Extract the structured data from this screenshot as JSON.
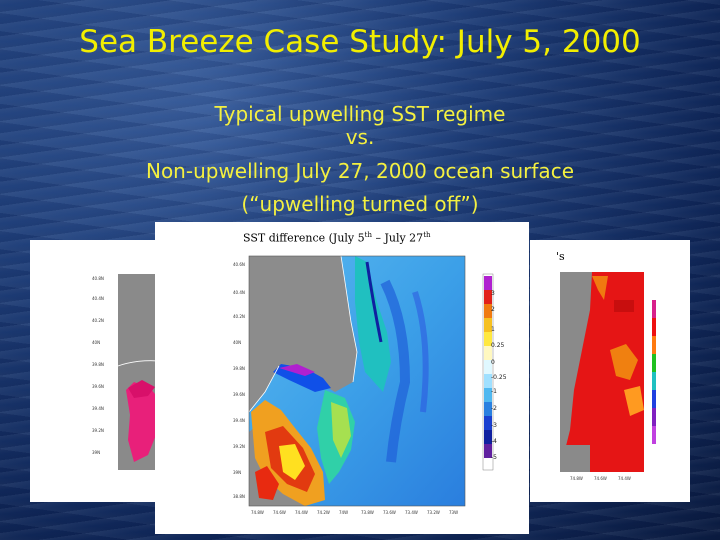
{
  "slide": {
    "title": "Sea Breeze Case Study: July 5, 2000",
    "subtitle_lines": [
      "Typical upwelling SST regime",
      "vs.",
      "Non-upwelling July 27, 2000 ocean surface",
      "(“upwelling turned off”)"
    ]
  },
  "figure": {
    "title_part1": "SST difference (July 5",
    "title_sup1": "th",
    "title_part2": " – July 27",
    "title_sup2": "th",
    "colorbar_labels": [
      "3",
      "2",
      "1",
      "0.25",
      "0",
      "-0.25",
      "-1",
      "-2",
      "-3",
      "-4",
      "-5"
    ],
    "right_title_fragment": "'s"
  },
  "colors": {
    "title_text": "#f2ee00",
    "background": "#1f3f7a"
  }
}
